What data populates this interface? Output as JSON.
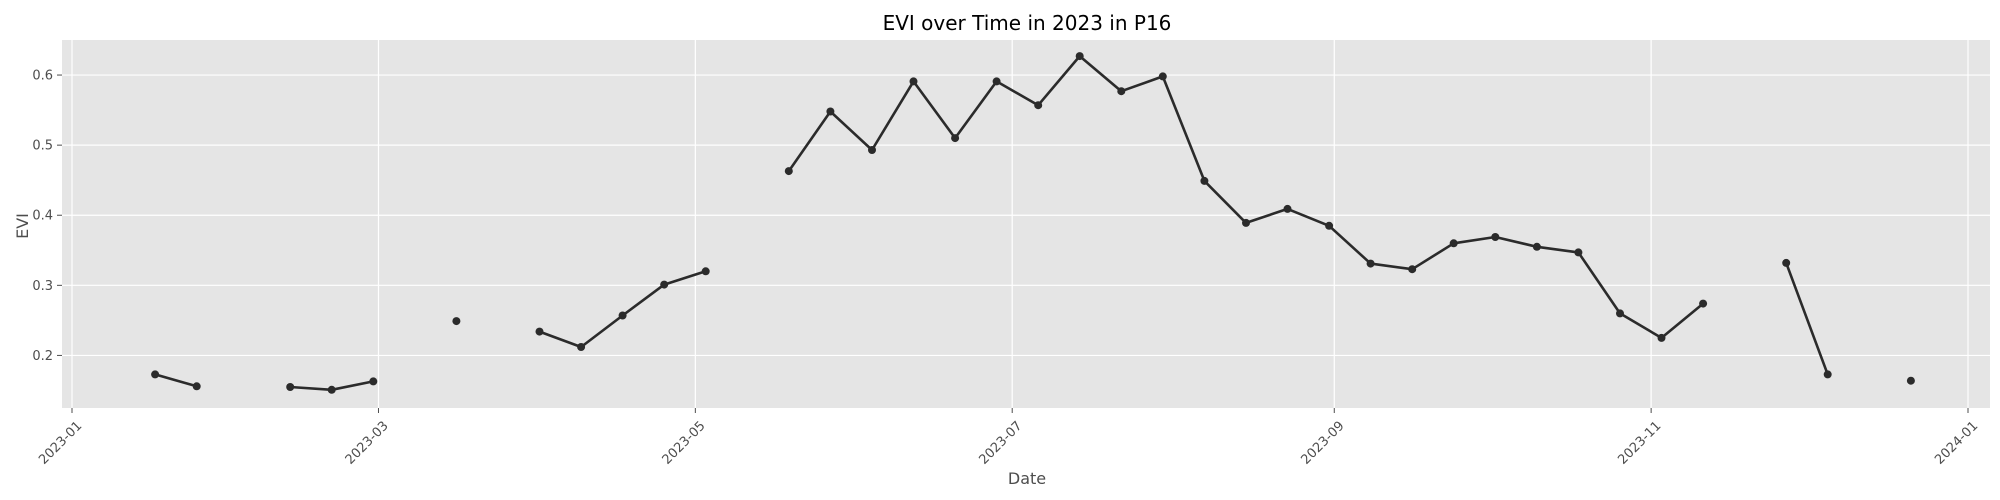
{
  "chart_data": {
    "type": "line",
    "title": "EVI over Time in 2023 in P16",
    "xlabel": "Date",
    "ylabel": "EVI",
    "x_axis": "date",
    "xlim": [
      "2023-01-01",
      "2024-01-01"
    ],
    "ylim": [
      0.125,
      0.65
    ],
    "grid": true,
    "legend": "none",
    "x_ticks": [
      "2023-01",
      "2023-03",
      "2023-05",
      "2023-07",
      "2023-09",
      "2023-11",
      "2024-01"
    ],
    "x_tick_dates": [
      "2023-01-01",
      "2023-03-01",
      "2023-05-01",
      "2023-07-01",
      "2023-09-01",
      "2023-11-01",
      "2024-01-01"
    ],
    "y_ticks": [
      0.2,
      0.3,
      0.4,
      0.5,
      0.6
    ],
    "y_tick_labels": [
      "0.2",
      "0.3",
      "0.4",
      "0.5",
      "0.6"
    ],
    "colors": {
      "line": "#2b2b2b",
      "marker": "#2b2b2b",
      "plot_background": "#e5e5e5",
      "grid": "#ffffff"
    },
    "series": [
      {
        "segments": [
          [
            [
              "2023-01-17",
              0.173
            ],
            [
              "2023-01-25",
              0.156
            ]
          ],
          [
            [
              "2023-02-12",
              0.155
            ],
            [
              "2023-02-20",
              0.151
            ],
            [
              "2023-02-28",
              0.163
            ]
          ],
          [
            [
              "2023-03-16",
              0.249
            ]
          ],
          [
            [
              "2023-04-01",
              0.234
            ],
            [
              "2023-04-09",
              0.212
            ],
            [
              "2023-04-17",
              0.257
            ],
            [
              "2023-04-25",
              0.301
            ],
            [
              "2023-05-03",
              0.32
            ]
          ],
          [
            [
              "2023-05-19",
              0.463
            ],
            [
              "2023-05-27",
              0.548
            ],
            [
              "2023-06-04",
              0.493
            ],
            [
              "2023-06-12",
              0.591
            ],
            [
              "2023-06-20",
              0.51
            ],
            [
              "2023-06-28",
              0.591
            ],
            [
              "2023-07-06",
              0.557
            ],
            [
              "2023-07-14",
              0.627
            ],
            [
              "2023-07-22",
              0.577
            ],
            [
              "2023-07-30",
              0.598
            ],
            [
              "2023-08-07",
              0.449
            ],
            [
              "2023-08-15",
              0.389
            ],
            [
              "2023-08-23",
              0.409
            ],
            [
              "2023-08-31",
              0.385
            ],
            [
              "2023-09-08",
              0.331
            ],
            [
              "2023-09-16",
              0.323
            ],
            [
              "2023-09-24",
              0.36
            ],
            [
              "2023-10-02",
              0.369
            ],
            [
              "2023-10-10",
              0.355
            ],
            [
              "2023-10-18",
              0.347
            ],
            [
              "2023-10-26",
              0.26
            ],
            [
              "2023-11-03",
              0.225
            ],
            [
              "2023-11-11",
              0.274
            ]
          ],
          [
            [
              "2023-11-27",
              0.332
            ],
            [
              "2023-12-05",
              0.173
            ]
          ],
          [
            [
              "2023-12-21",
              0.164
            ]
          ]
        ]
      }
    ]
  }
}
